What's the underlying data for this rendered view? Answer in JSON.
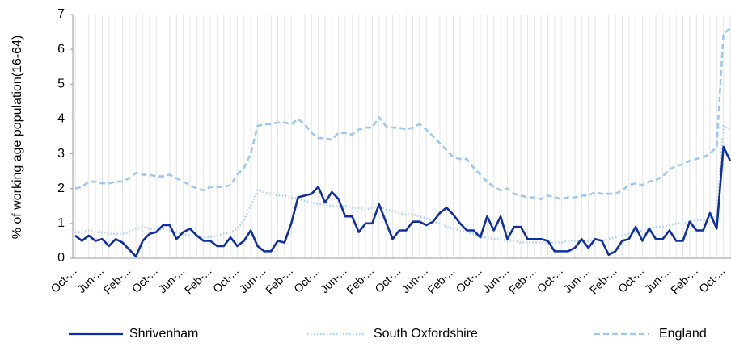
{
  "chart_data": {
    "type": "line",
    "ylabel": "% of working age population(16-64)",
    "categories": [
      "Oct-...",
      null,
      null,
      null,
      "Jun-...",
      null,
      null,
      null,
      "Feb-...",
      null,
      null,
      null,
      "Oct-...",
      null,
      null,
      null,
      "Jun-...",
      null,
      null,
      null,
      "Feb-...",
      null,
      null,
      null,
      "Oct-...",
      null,
      null,
      null,
      "Jun-...",
      null,
      null,
      null,
      "Feb-...",
      null,
      null,
      null,
      "Oct-...",
      null,
      null,
      null,
      "Jun-...",
      null,
      null,
      null,
      "Feb-...",
      null,
      null,
      null,
      "Oct-...",
      null,
      null,
      null,
      "Jun-...",
      null,
      null,
      null,
      "Feb-...",
      null,
      null,
      null,
      "Oct-...",
      null,
      null,
      null,
      "Jun-...",
      null,
      null,
      null,
      "Feb-...",
      null,
      null,
      null,
      "Oct-...",
      null,
      null,
      null,
      "Jun-...",
      null,
      null,
      null,
      "Feb-...",
      null,
      null,
      null,
      "Oct-...",
      null,
      null,
      null,
      "Jun-...",
      null,
      null,
      null,
      "Feb-...",
      null,
      null,
      null,
      "Oct-...",
      null
    ],
    "series": [
      {
        "name": "Shrivenham",
        "color": "#0f2fa3",
        "style": "solid",
        "values": [
          0.65,
          0.5,
          0.65,
          0.5,
          0.55,
          0.35,
          0.55,
          0.45,
          0.25,
          0.05,
          0.5,
          0.7,
          0.75,
          0.95,
          0.95,
          0.55,
          0.75,
          0.85,
          0.65,
          0.5,
          0.5,
          0.35,
          0.35,
          0.6,
          0.35,
          0.5,
          0.8,
          0.35,
          0.2,
          0.2,
          0.5,
          0.45,
          1.0,
          1.75,
          1.8,
          1.85,
          2.05,
          1.6,
          1.9,
          1.7,
          1.2,
          1.2,
          0.75,
          1.0,
          1.0,
          1.55,
          1.05,
          0.55,
          0.8,
          0.8,
          1.05,
          1.05,
          0.95,
          1.05,
          1.3,
          1.45,
          1.25,
          1.0,
          0.8,
          0.8,
          0.6,
          1.2,
          0.8,
          1.2,
          0.55,
          0.9,
          0.9,
          0.55,
          0.55,
          0.55,
          0.5,
          0.2,
          0.2,
          0.2,
          0.3,
          0.55,
          0.3,
          0.55,
          0.5,
          0.1,
          0.2,
          0.5,
          0.55,
          0.9,
          0.5,
          0.85,
          0.55,
          0.55,
          0.8,
          0.5,
          0.5,
          1.05,
          0.8,
          0.8,
          1.3,
          0.85,
          3.2,
          2.8
        ]
      },
      {
        "name": "South Oxfordshire",
        "color": "#a9d0f5",
        "style": "dotted",
        "values": [
          0.75,
          0.75,
          0.8,
          0.75,
          0.75,
          0.7,
          0.7,
          0.7,
          0.75,
          0.85,
          0.9,
          0.85,
          0.8,
          0.85,
          0.8,
          0.75,
          0.7,
          0.65,
          0.65,
          0.6,
          0.6,
          0.65,
          0.7,
          0.75,
          0.85,
          1.1,
          1.5,
          1.95,
          1.9,
          1.85,
          1.8,
          1.8,
          1.75,
          1.7,
          1.65,
          1.6,
          1.55,
          1.55,
          1.5,
          1.5,
          1.5,
          1.45,
          1.45,
          1.4,
          1.45,
          1.5,
          1.4,
          1.35,
          1.3,
          1.25,
          1.25,
          1.2,
          1.15,
          1.05,
          1.0,
          0.9,
          0.85,
          0.8,
          0.75,
          0.7,
          0.6,
          0.6,
          0.55,
          0.55,
          0.5,
          0.5,
          0.45,
          0.45,
          0.45,
          0.45,
          0.45,
          0.45,
          0.45,
          0.5,
          0.5,
          0.5,
          0.5,
          0.55,
          0.5,
          0.55,
          0.6,
          0.65,
          0.7,
          0.75,
          0.8,
          0.85,
          0.9,
          0.9,
          0.95,
          1.0,
          1.0,
          1.05,
          1.1,
          1.1,
          1.15,
          1.2,
          3.8,
          3.7
        ]
      },
      {
        "name": "England",
        "color": "#9cc8f2",
        "style": "dashed",
        "values": [
          2.0,
          2.05,
          2.2,
          2.2,
          2.15,
          2.15,
          2.2,
          2.2,
          2.3,
          2.45,
          2.4,
          2.4,
          2.35,
          2.35,
          2.4,
          2.3,
          2.2,
          2.1,
          2.0,
          1.95,
          2.05,
          2.05,
          2.05,
          2.1,
          2.4,
          2.6,
          3.0,
          3.8,
          3.85,
          3.85,
          3.9,
          3.9,
          3.85,
          4.0,
          3.85,
          3.6,
          3.45,
          3.45,
          3.4,
          3.6,
          3.6,
          3.55,
          3.7,
          3.75,
          3.75,
          4.05,
          3.8,
          3.75,
          3.75,
          3.7,
          3.75,
          3.85,
          3.7,
          3.5,
          3.3,
          3.1,
          2.9,
          2.85,
          2.85,
          2.6,
          2.4,
          2.2,
          2.05,
          1.95,
          2.0,
          1.85,
          1.8,
          1.75,
          1.75,
          1.7,
          1.8,
          1.75,
          1.7,
          1.75,
          1.75,
          1.8,
          1.8,
          1.9,
          1.85,
          1.85,
          1.85,
          1.95,
          2.1,
          2.15,
          2.1,
          2.2,
          2.25,
          2.35,
          2.55,
          2.65,
          2.7,
          2.8,
          2.85,
          2.9,
          3.0,
          3.2,
          6.45,
          6.6
        ]
      }
    ],
    "ylim": [
      0,
      7
    ],
    "yticks": [
      0,
      1,
      2,
      3,
      4,
      5,
      6,
      7
    ],
    "grid": "x",
    "legend": "bottom"
  }
}
